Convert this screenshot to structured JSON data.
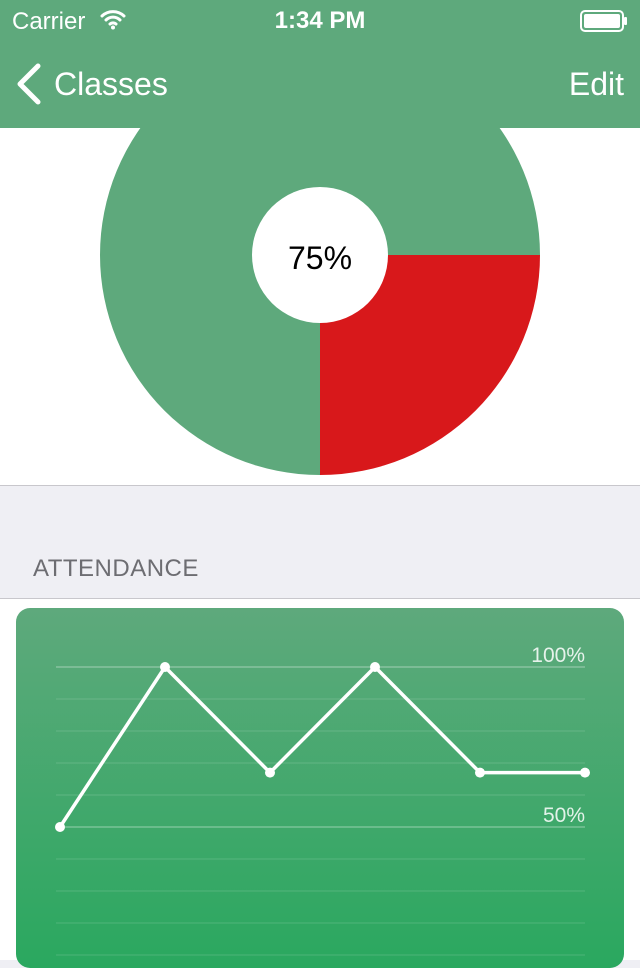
{
  "status_bar": {
    "carrier": "Carrier",
    "time": "1:34 PM",
    "wifi_icon": "wifi-icon",
    "battery_icon": "battery-icon"
  },
  "nav": {
    "back_label": "Classes",
    "back_icon": "chevron-left-icon",
    "edit_label": "Edit"
  },
  "colors": {
    "nav_bg": "#5ea97c",
    "pie_attended": "#5ea97c",
    "pie_missed": "#d8181b",
    "chart_top": "#5ea97c",
    "chart_bottom": "#2aa85f"
  },
  "attendance_summary": {
    "label": "75%",
    "value": 0.75
  },
  "section": {
    "attendance_header": "ATTENDANCE"
  },
  "chart_data": [
    {
      "type": "pie",
      "title": "",
      "center_label": "75%",
      "slices": [
        {
          "value": 75,
          "color": "#5ea97c"
        },
        {
          "value": 25,
          "color": "#d8181b"
        }
      ]
    },
    {
      "type": "line",
      "title": "",
      "xlabel": "",
      "ylabel": "",
      "ylim": [
        25,
        100
      ],
      "tick_labels": [
        "100%",
        "50%"
      ],
      "grid": true,
      "x": [
        1,
        2,
        3,
        4,
        5,
        6
      ],
      "series": [
        {
          "values": [
            50,
            100,
            67,
            100,
            67,
            67
          ],
          "color": "#ffffff"
        }
      ]
    }
  ]
}
